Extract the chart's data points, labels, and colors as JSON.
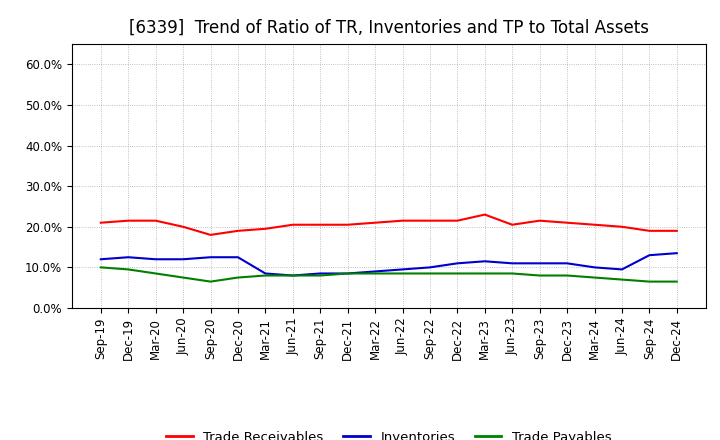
{
  "title": "[6339]  Trend of Ratio of TR, Inventories and TP to Total Assets",
  "x_labels": [
    "Sep-19",
    "Dec-19",
    "Mar-20",
    "Jun-20",
    "Sep-20",
    "Dec-20",
    "Mar-21",
    "Jun-21",
    "Sep-21",
    "Dec-21",
    "Mar-22",
    "Jun-22",
    "Sep-22",
    "Dec-22",
    "Mar-23",
    "Jun-23",
    "Sep-23",
    "Dec-23",
    "Mar-24",
    "Jun-24",
    "Sep-24",
    "Dec-24"
  ],
  "trade_receivables": [
    21.0,
    21.5,
    21.5,
    20.0,
    18.0,
    19.0,
    19.5,
    20.5,
    20.5,
    20.5,
    21.0,
    21.5,
    21.5,
    21.5,
    23.0,
    20.5,
    21.5,
    21.0,
    20.5,
    20.0,
    19.0,
    19.0
  ],
  "inventories": [
    12.0,
    12.5,
    12.0,
    12.0,
    12.5,
    12.5,
    8.5,
    8.0,
    8.5,
    8.5,
    9.0,
    9.5,
    10.0,
    11.0,
    11.5,
    11.0,
    11.0,
    11.0,
    10.0,
    9.5,
    13.0,
    13.5
  ],
  "trade_payables": [
    10.0,
    9.5,
    8.5,
    7.5,
    6.5,
    7.5,
    8.0,
    8.0,
    8.0,
    8.5,
    8.5,
    8.5,
    8.5,
    8.5,
    8.5,
    8.5,
    8.0,
    8.0,
    7.5,
    7.0,
    6.5,
    6.5
  ],
  "line_colors": {
    "trade_receivables": "#ff0000",
    "inventories": "#0000cc",
    "trade_payables": "#008000"
  },
  "ylim": [
    0,
    65
  ],
  "yticks": [
    0,
    10,
    20,
    30,
    40,
    50,
    60
  ],
  "ytick_labels": [
    "0.0%",
    "10.0%",
    "20.0%",
    "30.0%",
    "40.0%",
    "50.0%",
    "60.0%"
  ],
  "legend_labels": [
    "Trade Receivables",
    "Inventories",
    "Trade Payables"
  ],
  "background_color": "#ffffff",
  "plot_bg_color": "#ffffff",
  "grid_color": "#999999",
  "title_fontsize": 12,
  "tick_fontsize": 8.5,
  "legend_fontsize": 9.5
}
